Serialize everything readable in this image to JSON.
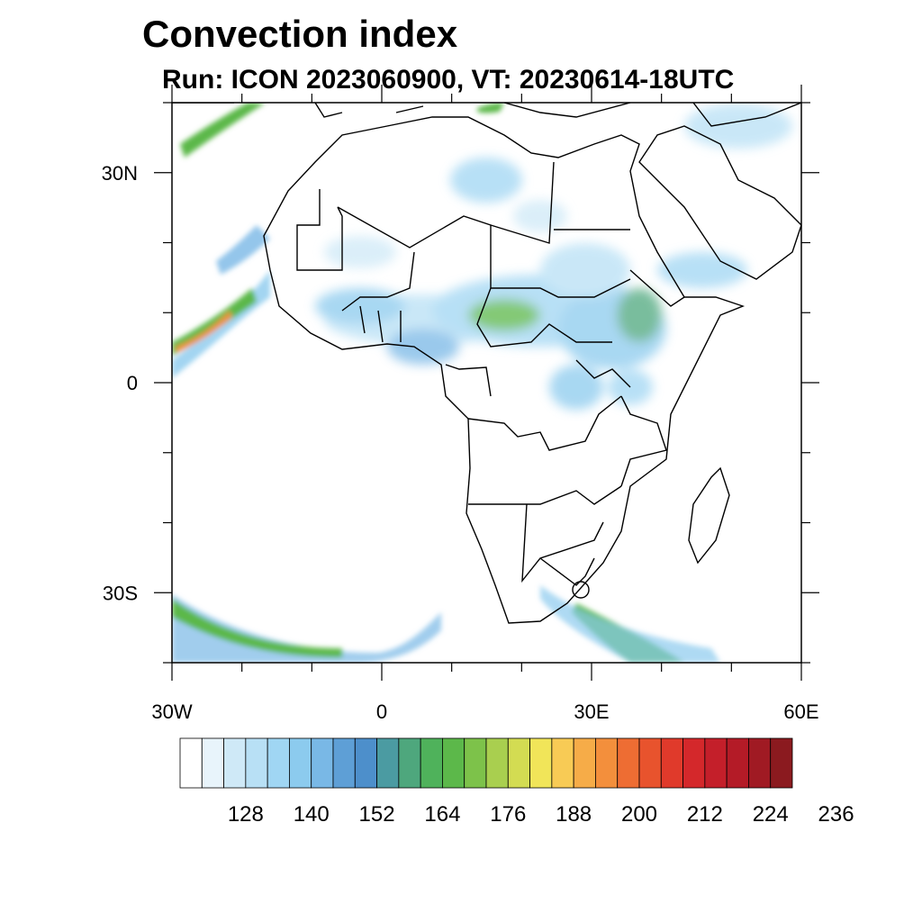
{
  "title": "Convection index",
  "subtitle": "Run: ICON 2023060900,  VT: 20230614-18UTC",
  "map": {
    "lon_range": [
      -30,
      60
    ],
    "lat_range": [
      -40,
      40
    ],
    "lat_ticks": [
      {
        "value": 30,
        "label": "30N"
      },
      {
        "value": 0,
        "label": "0"
      },
      {
        "value": -30,
        "label": "30S"
      }
    ],
    "lon_ticks": [
      {
        "value": -30,
        "label": "30W"
      },
      {
        "value": 0,
        "label": "0"
      },
      {
        "value": 30,
        "label": "30E"
      },
      {
        "value": 60,
        "label": "60E"
      }
    ]
  },
  "colorbar": {
    "colors": [
      "#ffffff",
      "#e8f4fb",
      "#cfe9f7",
      "#b8e0f5",
      "#a0d6f3",
      "#8ccbee",
      "#79b8e6",
      "#5e9fd6",
      "#4d8fcb",
      "#4b9ba2",
      "#4ea77d",
      "#4fb25b",
      "#5cb84a",
      "#7dc24a",
      "#a9cf4f",
      "#d3dc52",
      "#f1e559",
      "#f8cb55",
      "#f6ac48",
      "#f38f3c",
      "#ee6d33",
      "#e8532d",
      "#e03a2b",
      "#d4282b",
      "#c41f2a",
      "#b41b27",
      "#a01a23",
      "#8b1a1f"
    ],
    "labels": [
      "128",
      "140",
      "152",
      "164",
      "176",
      "188",
      "200",
      "212",
      "224",
      "236"
    ]
  }
}
